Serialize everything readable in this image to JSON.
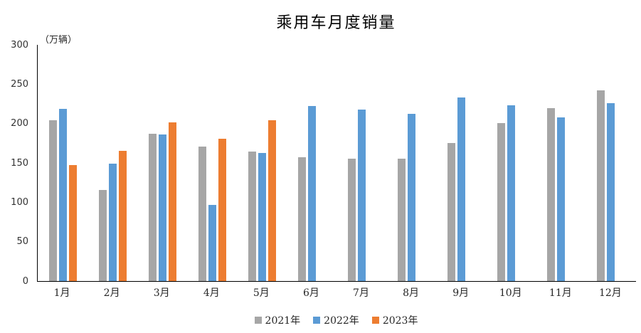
{
  "chart_data": {
    "type": "bar",
    "title": "乘用车月度销量",
    "unit_label": "（万辆）",
    "xlabel": "",
    "ylabel": "万辆",
    "categories": [
      "1月",
      "2月",
      "3月",
      "4月",
      "5月",
      "6月",
      "7月",
      "8月",
      "9月",
      "10月",
      "11月",
      "12月"
    ],
    "series": [
      {
        "name": "2021年",
        "color": "#A6A6A6",
        "values": [
          204.5,
          115.6,
          187.4,
          170.4,
          164.6,
          156.9,
          155.1,
          155.2,
          175.1,
          200.7,
          219.2,
          242.2
        ]
      },
      {
        "name": "2022年",
        "color": "#5B9BD5",
        "values": [
          218.6,
          148.7,
          186.4,
          96.5,
          162.3,
          222.2,
          217.4,
          212.5,
          233.2,
          223.1,
          207.5,
          226.3
        ]
      },
      {
        "name": "2023年",
        "color": "#ED7D31",
        "values": [
          146.9,
          165.3,
          201.7,
          181.1,
          204.2,
          null,
          null,
          null,
          null,
          null,
          null,
          null
        ]
      }
    ],
    "ylim": [
      0,
      300
    ],
    "yticks": [
      0,
      50,
      100,
      150,
      200,
      250,
      300
    ],
    "grid": false,
    "legend_position": "bottom",
    "axis_color": "#000000",
    "background_color": "#FFFFFF"
  }
}
